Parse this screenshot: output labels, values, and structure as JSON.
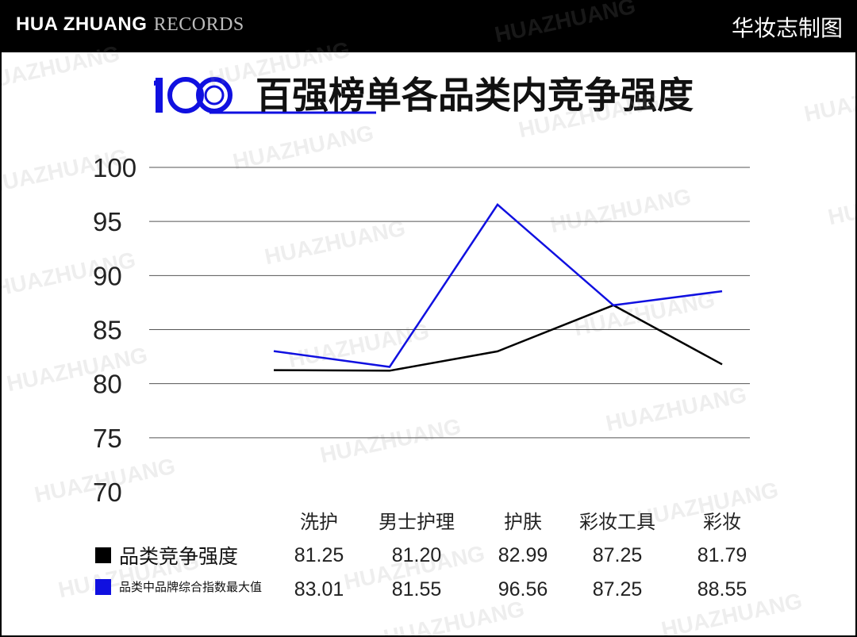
{
  "header": {
    "brand_primary": "HUA ZHUANG",
    "brand_secondary": "RECORDS",
    "right_label": "华妆志制图"
  },
  "title": {
    "logo_text": "100",
    "text": "百强榜单各品类内竞争强度"
  },
  "watermark_text": "HUAZHUANG",
  "colors": {
    "series_1": "#000000",
    "series_2": "#1010e0",
    "grid": "#555555",
    "accent": "#1010e0"
  },
  "chart_data": {
    "type": "line",
    "categories": [
      "洗护",
      "男士护理",
      "护肤",
      "彩妆工具",
      "彩妆"
    ],
    "series": [
      {
        "name": "品类竞争强度",
        "values": [
          81.25,
          81.2,
          82.99,
          87.25,
          81.79
        ],
        "labels": [
          "81.25",
          "81.20",
          "82.99",
          "87.25",
          "81.79"
        ]
      },
      {
        "name": "品类中品牌综合指数最大值",
        "values": [
          83.01,
          81.55,
          96.56,
          87.25,
          88.55
        ],
        "labels": [
          "83.01",
          "81.55",
          "96.56",
          "87.25",
          "88.55"
        ]
      }
    ],
    "ylim": [
      70,
      100
    ],
    "yticks": [
      "100",
      "95",
      "90",
      "85",
      "80",
      "75",
      "70"
    ],
    "grid": true,
    "legend_position": "bottom-left data table"
  }
}
